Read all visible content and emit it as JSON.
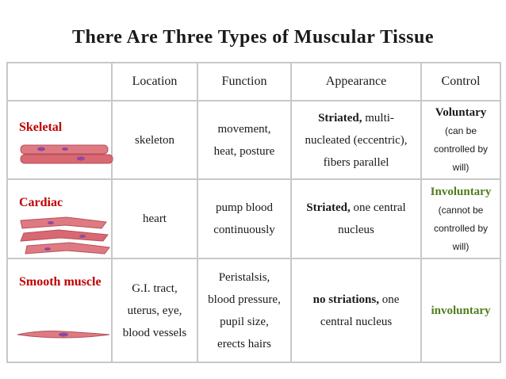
{
  "title": "There Are Three Types of Muscular Tissue",
  "table": {
    "header": [
      "Location",
      "Function",
      "Appearance",
      "Control"
    ],
    "rows": [
      {
        "name": "Skeletal",
        "location": [
          "skeleton"
        ],
        "function": [
          "movement,",
          "heat, posture"
        ],
        "appearance": {
          "bold": "Striated,",
          "lines": [
            "multi-",
            "nucleated (eccentric),",
            "fibers parallel"
          ]
        },
        "control": {
          "main": "Voluntary",
          "color": "#1a1a1a",
          "note": [
            "(can be",
            "controlled by",
            "will)"
          ]
        }
      },
      {
        "name": "Cardiac",
        "location": [
          "heart"
        ],
        "function": [
          "pump blood",
          "continuously"
        ],
        "appearance": {
          "bold": "Striated,",
          "lines": [
            "one central",
            "nucleus"
          ]
        },
        "control": {
          "main": "Involuntary",
          "color": "#4f7d1c",
          "note": [
            "(cannot be",
            "controlled by",
            "will)"
          ]
        }
      },
      {
        "name": "Smooth muscle",
        "location": [
          "G.I. tract,",
          "uterus, eye,",
          "blood vessels"
        ],
        "function": [
          "Peristalsis,",
          "blood pressure,",
          "pupil size,",
          "erects hairs"
        ],
        "appearance": {
          "bold": "no striations,",
          "lines": [
            "one",
            "central nucleus"
          ]
        },
        "control": {
          "main": "involuntary",
          "color": "#4f7d1c",
          "note": []
        }
      }
    ]
  }
}
